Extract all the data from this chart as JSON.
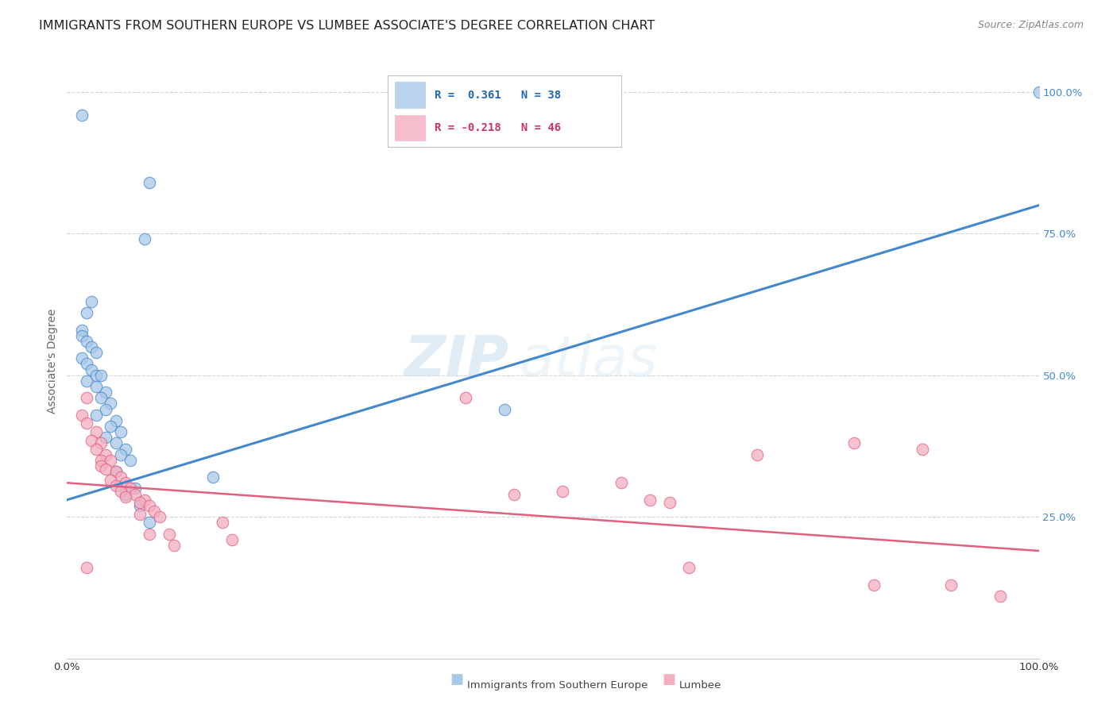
{
  "title": "IMMIGRANTS FROM SOUTHERN EUROPE VS LUMBEE ASSOCIATE'S DEGREE CORRELATION CHART",
  "source": "Source: ZipAtlas.com",
  "ylabel": "Associate's Degree",
  "legend_blue_r": "R =  0.361",
  "legend_blue_n": "N = 38",
  "legend_pink_r": "R = -0.218",
  "legend_pink_n": "N = 46",
  "legend_label_blue": "Immigrants from Southern Europe",
  "legend_label_pink": "Lumbee",
  "blue_color": "#a8c8e8",
  "pink_color": "#f4aec0",
  "blue_line_color": "#4488cc",
  "pink_line_color": "#e06080",
  "blue_r_color": "#2266bb",
  "pink_r_color": "#cc3366",
  "watermark_zip": "ZIP",
  "watermark_atlas": "atlas",
  "blue_points": [
    [
      1.5,
      96.0
    ],
    [
      8.5,
      84.0
    ],
    [
      8.0,
      74.0
    ],
    [
      2.5,
      63.0
    ],
    [
      2.0,
      61.0
    ],
    [
      1.5,
      58.0
    ],
    [
      1.5,
      57.0
    ],
    [
      2.0,
      56.0
    ],
    [
      2.5,
      55.0
    ],
    [
      3.0,
      54.0
    ],
    [
      1.5,
      53.0
    ],
    [
      2.0,
      52.0
    ],
    [
      2.5,
      51.0
    ],
    [
      3.0,
      50.0
    ],
    [
      3.5,
      50.0
    ],
    [
      2.0,
      49.0
    ],
    [
      3.0,
      48.0
    ],
    [
      4.0,
      47.0
    ],
    [
      3.5,
      46.0
    ],
    [
      4.5,
      45.0
    ],
    [
      4.0,
      44.0
    ],
    [
      3.0,
      43.0
    ],
    [
      5.0,
      42.0
    ],
    [
      4.5,
      41.0
    ],
    [
      5.5,
      40.0
    ],
    [
      4.0,
      39.0
    ],
    [
      5.0,
      38.0
    ],
    [
      6.0,
      37.0
    ],
    [
      5.5,
      36.0
    ],
    [
      6.5,
      35.0
    ],
    [
      5.0,
      33.0
    ],
    [
      15.0,
      32.0
    ],
    [
      7.0,
      30.0
    ],
    [
      6.0,
      29.0
    ],
    [
      7.5,
      27.0
    ],
    [
      8.5,
      24.0
    ],
    [
      45.0,
      44.0
    ],
    [
      100.0,
      100.0
    ]
  ],
  "pink_points": [
    [
      2.0,
      46.0
    ],
    [
      1.5,
      43.0
    ],
    [
      2.0,
      41.5
    ],
    [
      3.0,
      40.0
    ],
    [
      2.5,
      38.5
    ],
    [
      3.5,
      38.0
    ],
    [
      3.0,
      37.0
    ],
    [
      4.0,
      36.0
    ],
    [
      3.5,
      35.0
    ],
    [
      4.5,
      35.0
    ],
    [
      3.5,
      34.0
    ],
    [
      4.0,
      33.5
    ],
    [
      5.0,
      33.0
    ],
    [
      5.5,
      32.0
    ],
    [
      4.5,
      31.5
    ],
    [
      6.0,
      31.0
    ],
    [
      5.0,
      30.5
    ],
    [
      6.5,
      30.0
    ],
    [
      5.5,
      29.5
    ],
    [
      7.0,
      29.0
    ],
    [
      6.0,
      28.5
    ],
    [
      8.0,
      28.0
    ],
    [
      7.5,
      27.5
    ],
    [
      8.5,
      27.0
    ],
    [
      9.0,
      26.0
    ],
    [
      7.5,
      25.5
    ],
    [
      9.5,
      25.0
    ],
    [
      16.0,
      24.0
    ],
    [
      8.5,
      22.0
    ],
    [
      10.5,
      22.0
    ],
    [
      17.0,
      21.0
    ],
    [
      11.0,
      20.0
    ],
    [
      2.0,
      16.0
    ],
    [
      41.0,
      46.0
    ],
    [
      46.0,
      29.0
    ],
    [
      51.0,
      29.5
    ],
    [
      57.0,
      31.0
    ],
    [
      60.0,
      28.0
    ],
    [
      62.0,
      27.5
    ],
    [
      64.0,
      16.0
    ],
    [
      71.0,
      36.0
    ],
    [
      81.0,
      38.0
    ],
    [
      83.0,
      13.0
    ],
    [
      88.0,
      37.0
    ],
    [
      91.0,
      13.0
    ],
    [
      96.0,
      11.0
    ]
  ],
  "blue_line_x": [
    0.0,
    100.0
  ],
  "blue_line_y": [
    28.0,
    80.0
  ],
  "pink_line_x": [
    0.0,
    100.0
  ],
  "pink_line_y": [
    31.0,
    19.0
  ],
  "xlim": [
    0.0,
    100.0
  ],
  "ylim": [
    0.0,
    105.0
  ],
  "yticks": [
    0,
    25,
    50,
    75,
    100
  ],
  "ytick_labels": [
    "",
    "25.0%",
    "50.0%",
    "75.0%",
    "100.0%"
  ],
  "xtick_labels_show": [
    "0.0%",
    "100.0%"
  ],
  "title_fontsize": 11.5,
  "source_fontsize": 9,
  "axis_label_fontsize": 10,
  "tick_fontsize": 9.5,
  "legend_fontsize": 10,
  "background_color": "#ffffff",
  "grid_color": "#d0d0d0"
}
